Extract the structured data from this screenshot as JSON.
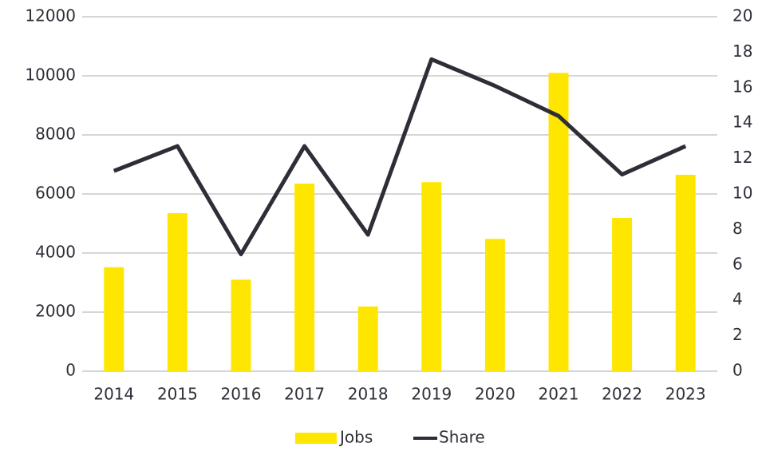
{
  "chart_data": {
    "type": "bar_line",
    "categories": [
      "2014",
      "2015",
      "2016",
      "2017",
      "2018",
      "2019",
      "2020",
      "2021",
      "2022",
      "2023"
    ],
    "series": [
      {
        "name": "Jobs",
        "color": "#ffe600",
        "type": "bar",
        "values": [
          3520,
          5350,
          3100,
          6350,
          2190,
          6400,
          4480,
          10100,
          5190,
          6650
        ]
      },
      {
        "name": "Share",
        "color": "#2e2e38",
        "type": "line",
        "axis": "y2",
        "values": [
          11.3,
          12.7,
          6.6,
          12.7,
          7.7,
          17.6,
          16.1,
          14.4,
          11.1,
          12.7
        ]
      }
    ],
    "ylim": [
      0,
      12000
    ],
    "yticks": [
      0,
      2000,
      4000,
      6000,
      8000,
      10000,
      12000
    ],
    "y2lim": [
      0,
      20
    ],
    "y2ticks": [
      0,
      2,
      4,
      6,
      8,
      10,
      12,
      14,
      16,
      18,
      20
    ],
    "grid": true,
    "legend": "bottom"
  }
}
